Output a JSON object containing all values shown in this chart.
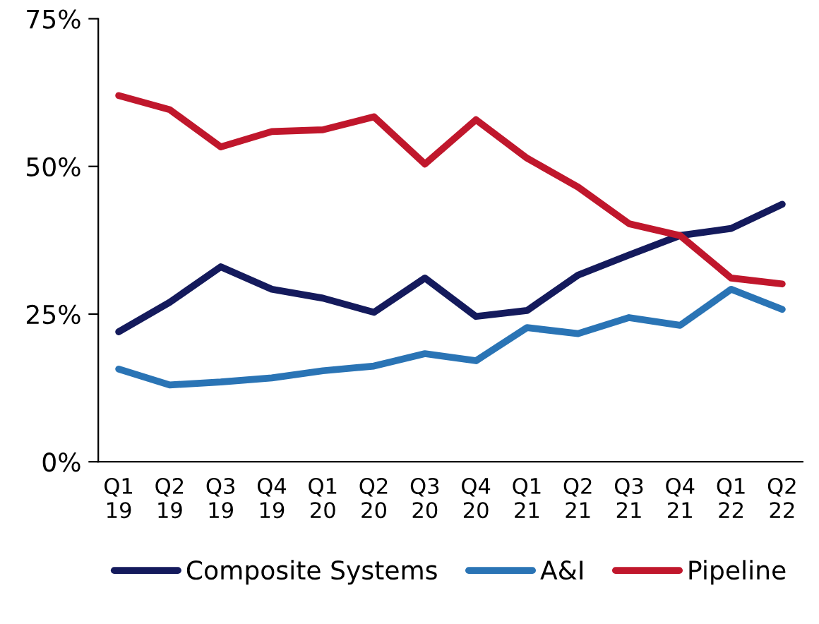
{
  "chart_data": {
    "type": "line",
    "categories": [
      "Q1\n19",
      "Q2\n19",
      "Q3\n19",
      "Q4\n19",
      "Q1\n20",
      "Q2\n20",
      "Q3\n20",
      "Q4\n20",
      "Q1\n21",
      "Q2\n21",
      "Q3\n21",
      "Q4\n21",
      "Q1\n22",
      "Q2\n22"
    ],
    "series": [
      {
        "name": "Composite Systems",
        "color": "#141a5c",
        "values": [
          22,
          27,
          33,
          29.2,
          27.7,
          25.3,
          31.1,
          24.6,
          25.6,
          31.6,
          35,
          38.3,
          39.5,
          43.6
        ]
      },
      {
        "name": "A&I",
        "color": "#2a74b5",
        "values": [
          15.7,
          13,
          13.5,
          14.2,
          15.4,
          16.2,
          18.3,
          17.1,
          22.7,
          21.7,
          24.4,
          23.1,
          29.2,
          25.8
        ]
      },
      {
        "name": "Pipeline",
        "color": "#c0172c",
        "values": [
          62,
          59.6,
          53.3,
          55.9,
          56.2,
          58.4,
          50.4,
          57.9,
          51.4,
          46.5,
          40.3,
          38.3,
          31.1,
          30.1
        ]
      }
    ],
    "ylim": [
      0,
      75
    ],
    "yticks": [
      {
        "value": 0,
        "label": "0%"
      },
      {
        "value": 25,
        "label": "25%"
      },
      {
        "value": 50,
        "label": "50%"
      },
      {
        "value": 75,
        "label": "75%"
      }
    ],
    "grid": false,
    "legend": "bottom",
    "marker": "none",
    "line_style": "solid"
  }
}
